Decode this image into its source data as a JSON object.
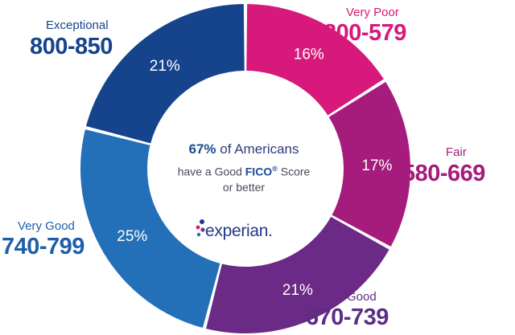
{
  "chart_data": {
    "type": "pie",
    "title": "",
    "donut": true,
    "segments": [
      {
        "label": "Very Poor",
        "range": "300-579",
        "value": 16,
        "value_label": "16%",
        "color": "#d6197b"
      },
      {
        "label": "Fair",
        "range": "580-669",
        "value": 17,
        "value_label": "17%",
        "color": "#a51c7c"
      },
      {
        "label": "Good",
        "range": "670-739",
        "value": 21,
        "value_label": "21%",
        "color": "#6a2a86"
      },
      {
        "label": "Very Good",
        "range": "740-799",
        "value": 25,
        "value_label": "25%",
        "color": "#2470b8"
      },
      {
        "label": "Exceptional",
        "range": "800-850",
        "value": 21,
        "value_label": "21%",
        "color": "#16448c"
      }
    ],
    "label_colors": {
      "very_poor": "#d6197b",
      "fair": "#a51c7c",
      "good": "#5c2d84",
      "very_good": "#1f5fa8",
      "exceptional": "#16448c"
    }
  },
  "center": {
    "line1_emphasis": "67%",
    "line1_rest": " of Americans",
    "line2_prefix": "have a Good ",
    "line2_emphasis": "FICO",
    "line2_reg": "®",
    "line2_suffix": " Score",
    "line3": "or better"
  },
  "logo": {
    "text": "experian.",
    "dot_colors": [
      "#1e3a8a",
      "#d6197b",
      "#7b2d8e",
      "#2470b8"
    ]
  }
}
